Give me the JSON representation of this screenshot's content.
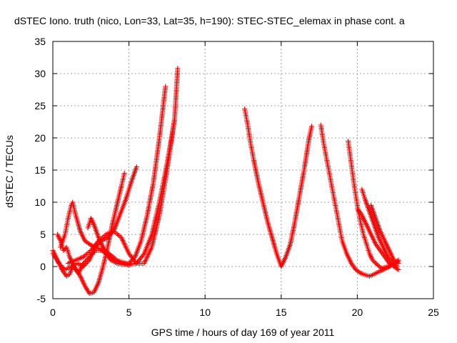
{
  "chart_data": {
    "type": "scatter",
    "title": "dSTEC Iono. truth (nico, Lon=33, Lat=35, h=190): STEC-STEC_elemax in phase cont. a",
    "xlabel": "GPS time / hours of day 169 of year 2011",
    "ylabel": "dSTEC  / TECUs",
    "xlim": [
      0,
      25
    ],
    "ylim": [
      -5,
      35
    ],
    "xticks": [
      0,
      5,
      10,
      15,
      20,
      25
    ],
    "yticks": [
      -5,
      0,
      5,
      10,
      15,
      20,
      25,
      30,
      35
    ],
    "xtick_labels": [
      "0",
      "5",
      "10",
      "15",
      "20",
      "25"
    ],
    "ytick_labels": [
      "-5",
      "0",
      "5",
      "10",
      "15",
      "20",
      "25",
      "30",
      "35"
    ],
    "grid": true,
    "legend": "none",
    "marker": "plus",
    "color": "#ff0000",
    "series": [
      {
        "x": [
          0.0,
          0.3,
          0.6,
          0.9,
          1.1,
          1.3,
          1.5,
          1.8,
          2.1,
          2.4,
          2.7,
          3.0,
          3.3,
          3.6,
          3.9,
          4.2,
          4.5,
          4.7
        ],
        "y": [
          2.5,
          1.0,
          -0.5,
          -1.5,
          -1.2,
          0.0,
          -0.5,
          -1.5,
          -3.0,
          -4.2,
          -4.0,
          -2.5,
          0.0,
          3.0,
          6.5,
          9.5,
          12.5,
          14.5
        ]
      },
      {
        "x": [
          0.0,
          0.4,
          0.8,
          1.2,
          1.6,
          2.0,
          2.4,
          2.8,
          3.2,
          3.6,
          4.0,
          4.4,
          4.8,
          5.2,
          5.5
        ],
        "y": [
          2.0,
          0.5,
          -0.5,
          0.0,
          0.5,
          0.0,
          1.0,
          3.0,
          4.0,
          4.5,
          5.5,
          8.0,
          10.5,
          13.5,
          15.5
        ]
      },
      {
        "x": [
          0.3,
          0.5,
          0.7,
          0.9,
          1.1,
          1.4,
          1.7,
          2.0,
          2.4,
          2.8,
          3.2,
          3.6,
          4.0,
          4.4,
          4.8,
          5.0
        ],
        "y": [
          5.0,
          4.0,
          2.5,
          3.0,
          1.5,
          0.0,
          -1.0,
          0.5,
          1.5,
          2.5,
          2.5,
          1.8,
          1.0,
          0.8,
          0.5,
          0.3
        ]
      },
      {
        "x": [
          0.5,
          0.8,
          1.0,
          1.2,
          1.3,
          1.5,
          1.8,
          2.1,
          2.4,
          2.7,
          3.0,
          3.4,
          3.8,
          4.2,
          4.6,
          5.0
        ],
        "y": [
          3.0,
          5.0,
          7.5,
          9.5,
          10.0,
          8.0,
          5.5,
          4.0,
          3.5,
          3.0,
          2.8,
          2.5,
          1.8,
          1.0,
          0.5,
          0.2
        ]
      },
      {
        "x": [
          2.3,
          2.5,
          2.7,
          3.0,
          3.4,
          3.8,
          4.2,
          4.6,
          5.0,
          5.4,
          5.8,
          6.2,
          6.6,
          7.0,
          7.4
        ],
        "y": [
          6.0,
          7.5,
          6.5,
          4.5,
          2.5,
          1.0,
          0.5,
          0.3,
          0.5,
          1.5,
          4.0,
          8.0,
          13.0,
          20.0,
          28.0
        ]
      },
      {
        "x": [
          1.0,
          1.5,
          2.0,
          2.5,
          3.0,
          3.5,
          4.0,
          4.5,
          5.0,
          5.5,
          6.0,
          6.5,
          7.0,
          7.5,
          8.0,
          8.2
        ],
        "y": [
          0.5,
          1.0,
          1.5,
          2.5,
          4.0,
          5.0,
          5.5,
          4.5,
          2.0,
          0.5,
          0.5,
          3.0,
          8.0,
          15.0,
          23.0,
          30.8
        ]
      },
      {
        "x": [
          4.0,
          4.5,
          5.0,
          5.5,
          6.0,
          6.5,
          7.0,
          7.5,
          7.8,
          8.0
        ],
        "y": [
          1.0,
          0.6,
          0.3,
          0.5,
          2.0,
          5.0,
          10.0,
          16.0,
          20.0,
          23.0
        ]
      },
      {
        "x": [
          12.6,
          12.8,
          13.0,
          13.2,
          13.5,
          13.8,
          14.1,
          14.4,
          14.7,
          15.0,
          15.3,
          15.6,
          15.9,
          16.2,
          16.5,
          16.8,
          17.0
        ],
        "y": [
          24.5,
          22.0,
          19.0,
          16.5,
          13.0,
          10.0,
          7.0,
          4.5,
          2.0,
          0.0,
          1.5,
          3.5,
          7.0,
          11.0,
          15.0,
          19.5,
          21.8
        ]
      },
      {
        "x": [
          17.6,
          17.8,
          18.0,
          18.2,
          18.4,
          18.6,
          18.8,
          19.0,
          19.3,
          19.6,
          19.9,
          20.2,
          20.5,
          20.8,
          21.1,
          21.4,
          21.7,
          22.0,
          22.4,
          22.7
        ],
        "y": [
          22.0,
          19.0,
          16.5,
          14.0,
          11.5,
          9.0,
          6.5,
          4.0,
          2.0,
          0.5,
          -0.5,
          -1.0,
          -1.3,
          -1.5,
          -1.2,
          -0.8,
          -0.5,
          -0.2,
          0.5,
          1.0
        ]
      },
      {
        "x": [
          19.4,
          19.6,
          19.8,
          20.0,
          20.2,
          20.4,
          20.6,
          20.8,
          21.0,
          21.3,
          21.6,
          22.0,
          22.4,
          22.7
        ],
        "y": [
          19.5,
          16.0,
          12.5,
          9.5,
          7.0,
          5.0,
          3.5,
          2.0,
          1.0,
          0.3,
          -0.3,
          0.0,
          0.5,
          0.8
        ]
      },
      {
        "x": [
          20.0,
          20.3,
          20.6,
          20.9,
          21.2,
          21.5,
          21.8,
          22.1,
          22.4,
          22.7
        ],
        "y": [
          9.0,
          8.0,
          6.5,
          5.0,
          3.5,
          2.5,
          1.5,
          0.5,
          0.0,
          -0.5
        ]
      },
      {
        "x": [
          20.3,
          20.5,
          20.8,
          21.1,
          21.4,
          21.7,
          22.0,
          22.3,
          22.6
        ],
        "y": [
          12.0,
          10.5,
          8.5,
          6.5,
          4.5,
          3.0,
          1.5,
          0.5,
          0.0
        ]
      },
      {
        "x": [
          20.9,
          21.2,
          21.5,
          21.8,
          22.1,
          22.4,
          22.7
        ],
        "y": [
          9.5,
          7.5,
          5.5,
          4.0,
          2.5,
          1.0,
          0.5
        ]
      }
    ]
  }
}
